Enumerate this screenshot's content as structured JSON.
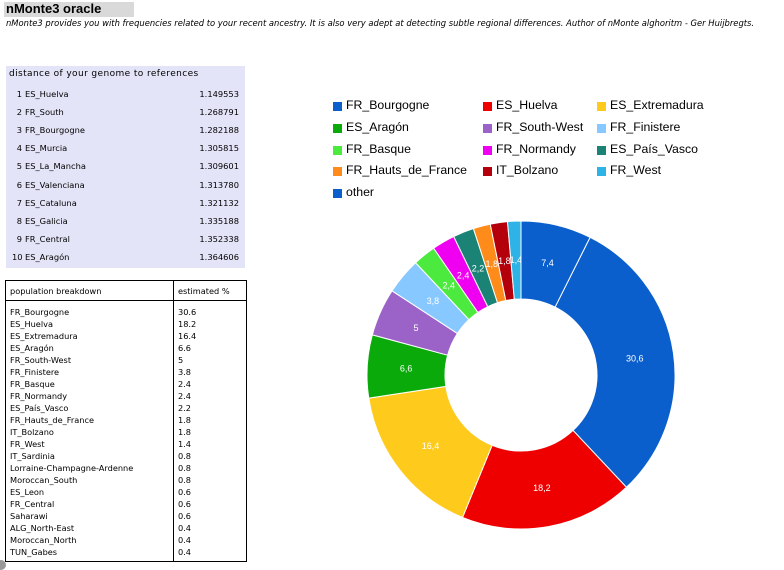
{
  "header": {
    "title": "nMonte3 oracle",
    "subtitle": "nMonte3 provides you with frequencies related to your recent ancestry. It is also very adept at detecting subtle regional differences. Author of nMonte alghoritm - Ger Huijbregts."
  },
  "distances": {
    "heading": "distance of your genome to references",
    "rows": [
      {
        "rank": "1",
        "name": "ES_Huelva",
        "value": "1.149553"
      },
      {
        "rank": "2",
        "name": "FR_South",
        "value": "1.268791"
      },
      {
        "rank": "3",
        "name": "FR_Bourgogne",
        "value": "1.282188"
      },
      {
        "rank": "4",
        "name": "ES_Murcia",
        "value": "1.305815"
      },
      {
        "rank": "5",
        "name": "ES_La_Mancha",
        "value": "1.309601"
      },
      {
        "rank": "6",
        "name": "ES_Valenciana",
        "value": "1.313780"
      },
      {
        "rank": "7",
        "name": "ES_Cataluna",
        "value": "1.321132"
      },
      {
        "rank": "8",
        "name": "ES_Galicia",
        "value": "1.335188"
      },
      {
        "rank": "9",
        "name": "FR_Central",
        "value": "1.352338"
      },
      {
        "rank": "10",
        "name": "ES_Aragón",
        "value": "1.364606"
      }
    ]
  },
  "population": {
    "col1": "population breakdown",
    "col2": "estimated %",
    "rows": [
      {
        "name": "FR_Bourgogne",
        "value": "30.6"
      },
      {
        "name": "ES_Huelva",
        "value": "18.2"
      },
      {
        "name": "ES_Extremadura",
        "value": "16.4"
      },
      {
        "name": "ES_Aragón",
        "value": "6.6"
      },
      {
        "name": "FR_South-West",
        "value": "5"
      },
      {
        "name": "FR_Finistere",
        "value": "3.8"
      },
      {
        "name": "FR_Basque",
        "value": "2.4"
      },
      {
        "name": "FR_Normandy",
        "value": "2.4"
      },
      {
        "name": "ES_País_Vasco",
        "value": "2.2"
      },
      {
        "name": "FR_Hauts_de_France",
        "value": "1.8"
      },
      {
        "name": "IT_Bolzano",
        "value": "1.8"
      },
      {
        "name": "FR_West",
        "value": "1.4"
      },
      {
        "name": "IT_Sardinia",
        "value": "0.8"
      },
      {
        "name": "Lorraine-Champagne-Ardenne",
        "value": "0.8"
      },
      {
        "name": "Moroccan_South",
        "value": "0.8"
      },
      {
        "name": "ES_Leon",
        "value": "0.6"
      },
      {
        "name": "FR_Central",
        "value": "0.6"
      },
      {
        "name": "Saharawi",
        "value": "0.6"
      },
      {
        "name": "ALG_North-East",
        "value": "0.4"
      },
      {
        "name": "Moroccan_North",
        "value": "0.4"
      },
      {
        "name": "TUN_Gabes",
        "value": "0.4"
      }
    ]
  },
  "chart_data": {
    "type": "pie",
    "donut": true,
    "legend_position": "top",
    "slices": [
      {
        "name": "FR_Bourgogne",
        "value": 30.6,
        "label": "30,6",
        "color": "#0a5fcc"
      },
      {
        "name": "ES_Huelva",
        "value": 18.2,
        "label": "18,2",
        "color": "#ee0000"
      },
      {
        "name": "ES_Extremadura",
        "value": 16.4,
        "label": "16,4",
        "color": "#fecb1d"
      },
      {
        "name": "ES_Aragón",
        "value": 6.6,
        "label": "6,6",
        "color": "#0aaa0a"
      },
      {
        "name": "FR_South-West",
        "value": 5,
        "label": "5",
        "color": "#9b62c8"
      },
      {
        "name": "FR_Finistere",
        "value": 3.8,
        "label": "3,8",
        "color": "#86c8ff"
      },
      {
        "name": "FR_Basque",
        "value": 2.4,
        "label": "2,4",
        "color": "#4cea3e"
      },
      {
        "name": "FR_Normandy",
        "value": 2.4,
        "label": "2,4",
        "color": "#f000f0"
      },
      {
        "name": "ES_País_Vasco",
        "value": 2.2,
        "label": "2,2",
        "color": "#1b8276"
      },
      {
        "name": "FR_Hauts_de_France",
        "value": 1.8,
        "label": "1,8",
        "color": "#ff8c1a"
      },
      {
        "name": "IT_Bolzano",
        "value": 1.8,
        "label": "1,8",
        "color": "#b3000a"
      },
      {
        "name": "FR_West",
        "value": 1.4,
        "label": "1,4",
        "color": "#2eb3e6"
      },
      {
        "name": "other",
        "value": 7.4,
        "label": "7,4",
        "color": "#0a5fcc"
      }
    ]
  }
}
